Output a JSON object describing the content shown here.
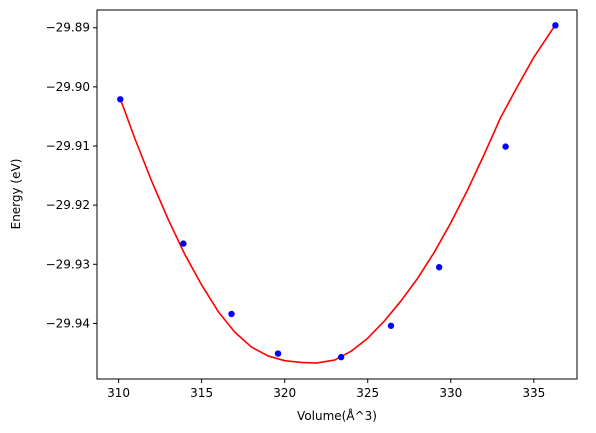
{
  "chart_data": {
    "type": "scatter",
    "title": "",
    "xlabel": "Volume(Å^3)",
    "ylabel": "Energy (eV)",
    "xlim": [
      308.7,
      337.6
    ],
    "ylim": [
      -29.9494,
      -29.887
    ],
    "xticks": [
      310,
      315,
      320,
      325,
      330,
      335
    ],
    "xtick_labels": [
      "310",
      "315",
      "320",
      "325",
      "330",
      "335"
    ],
    "yticks": [
      -29.94,
      -29.93,
      -29.92,
      -29.91,
      -29.9,
      -29.89
    ],
    "ytick_labels": [
      "−29.94",
      "−29.93",
      "−29.92",
      "−29.91",
      "−29.90",
      "−29.89"
    ],
    "grid": false,
    "points_color": "#0000ff",
    "fit_color": "#ff0000",
    "series": [
      {
        "kind": "points",
        "x": [
          310.1,
          313.9,
          316.8,
          319.6,
          323.4,
          326.4,
          329.3,
          333.3,
          336.3
        ],
        "y": [
          -29.9021,
          -29.9265,
          -29.9384,
          -29.9451,
          -29.9457,
          -29.9404,
          -29.9305,
          -29.9101,
          -29.8896
        ]
      },
      {
        "kind": "fit",
        "x": [
          310.1,
          311.0,
          312.0,
          313.0,
          314.0,
          315.0,
          316.0,
          317.0,
          318.0,
          319.0,
          320.0,
          321.0,
          321.9,
          323.0,
          324.0,
          325.0,
          326.0,
          327.0,
          328.0,
          329.0,
          330.0,
          331.0,
          332.0,
          333.0,
          334.0,
          335.0,
          336.3
        ],
        "y": [
          -29.902,
          -29.9089,
          -29.916,
          -29.9225,
          -29.9284,
          -29.9335,
          -29.938,
          -29.9415,
          -29.944,
          -29.9455,
          -29.9463,
          -29.9466,
          -29.9467,
          -29.9462,
          -29.9447,
          -29.9425,
          -29.9396,
          -29.9362,
          -29.9324,
          -29.928,
          -29.923,
          -29.9175,
          -29.9115,
          -29.9052,
          -29.9,
          -29.895,
          -29.8895
        ]
      }
    ]
  }
}
